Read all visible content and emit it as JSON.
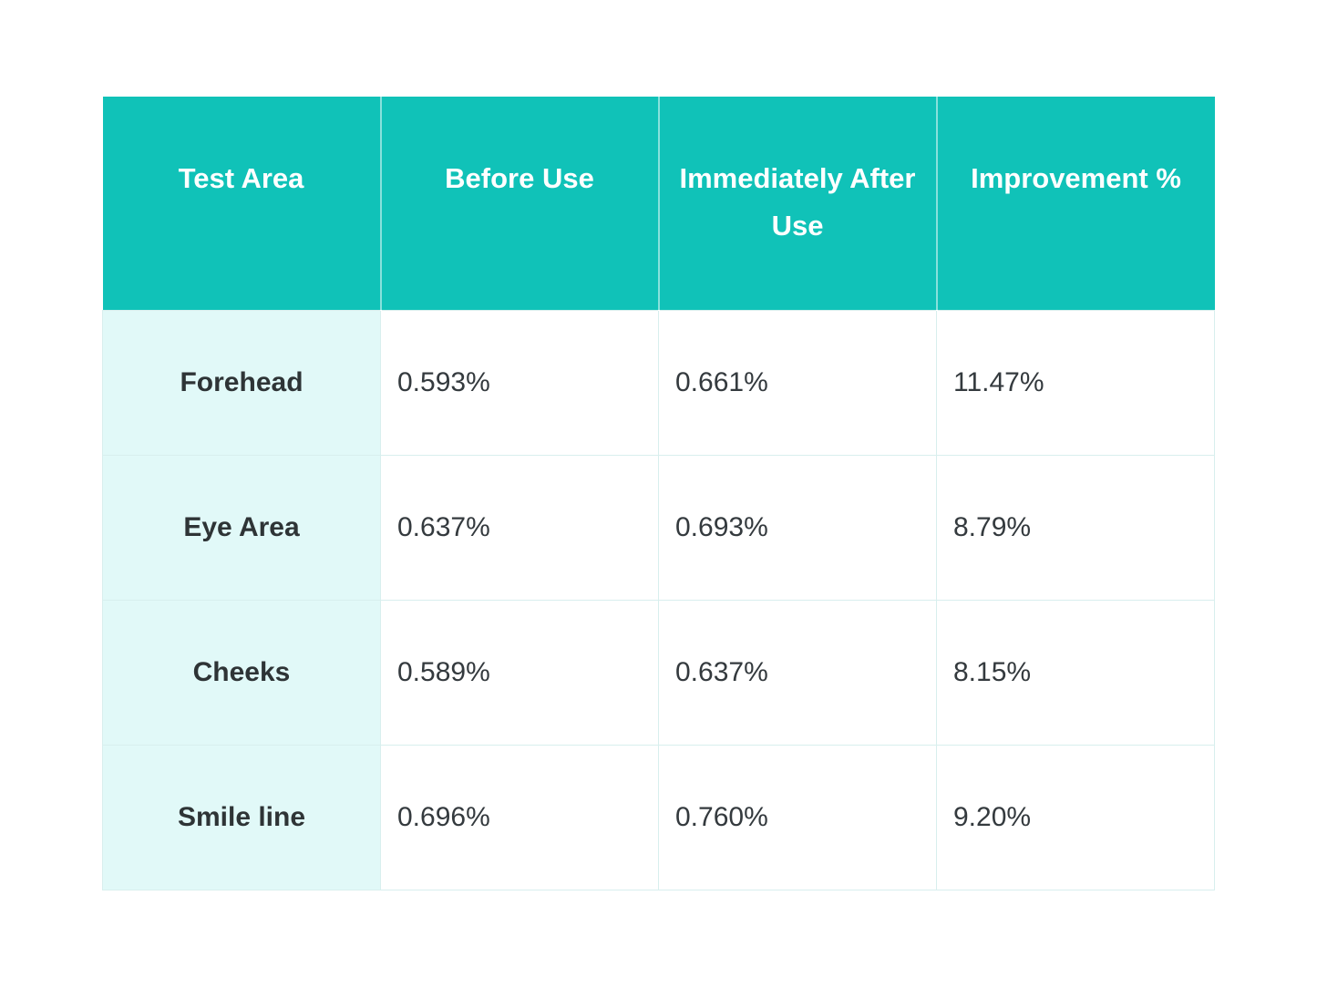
{
  "chart_data": {
    "type": "table",
    "columns": [
      "Test Area",
      "Before Use",
      "Immediately After Use",
      "Improvement %"
    ],
    "rows": [
      [
        "Forehead",
        "0.593%",
        "0.661%",
        "11.47%"
      ],
      [
        "Eye Area",
        "0.637%",
        "0.693%",
        "8.79%"
      ],
      [
        "Cheeks",
        "0.589%",
        "0.637%",
        "8.15%"
      ],
      [
        "Smile line",
        "0.696%",
        "0.760%",
        "9.20%"
      ]
    ]
  },
  "colors": {
    "header_background": "#10c2b8",
    "header_text": "#ffffff",
    "label_column_background": "#e1f9f8",
    "cell_background": "#ffffff",
    "grid_border": "#d8efee",
    "body_text": "#343a3e"
  }
}
